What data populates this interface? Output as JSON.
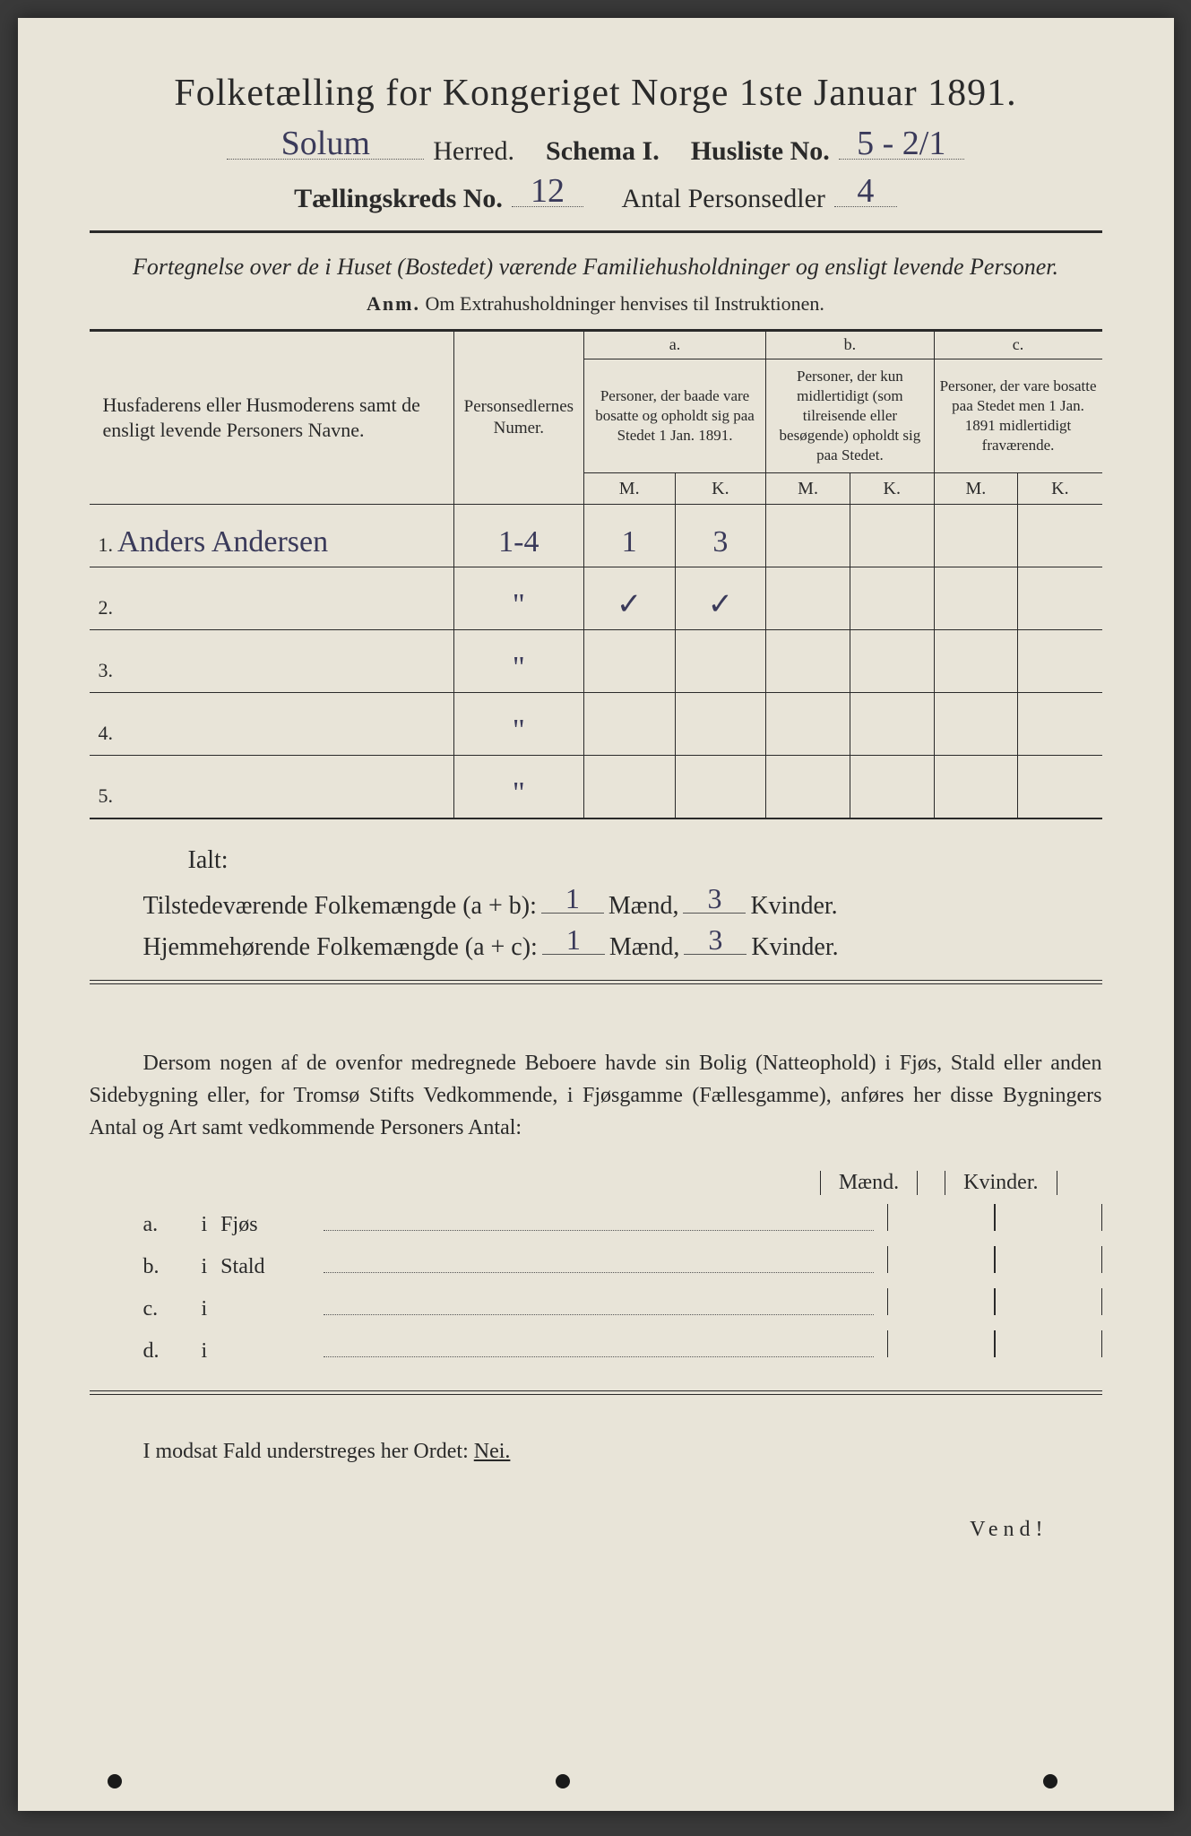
{
  "header": {
    "title": "Folketælling for Kongeriget Norge 1ste Januar 1891.",
    "district_hw": "Solum",
    "herred": "Herred.",
    "schema": "Schema I.",
    "husliste_label": "Husliste No.",
    "husliste_hw": "5 - 2/1",
    "kreds_label": "Tællingskreds No.",
    "kreds_hw": "12",
    "antal_label": "Antal Personsedler",
    "antal_hw": "4"
  },
  "subtitle": "Fortegnelse over de i Huset (Bostedet) værende Familiehusholdninger og ensligt levende Personer.",
  "anm_label": "Anm.",
  "anm_text": "Om Extrahusholdninger henvises til Instruktionen.",
  "table": {
    "col1_header": "Husfaderens eller Husmoderens samt de ensligt levende Personers Navne.",
    "col2_header": "Personsedlernes Numer.",
    "col_a_letter": "a.",
    "col_a_desc": "Personer, der baade vare bosatte og opholdt sig paa Stedet 1 Jan. 1891.",
    "col_b_letter": "b.",
    "col_b_desc": "Personer, der kun midlertidigt (som tilreisende eller besøgende) opholdt sig paa Stedet.",
    "col_c_letter": "c.",
    "col_c_desc": "Personer, der vare bosatte paa Stedet men 1 Jan. 1891 midlertidigt fraværende.",
    "M": "M.",
    "K": "K.",
    "rows": [
      {
        "idx": "1.",
        "name_hw": "Anders Andersen",
        "num_hw": "1-4",
        "aM": "1",
        "aK": "3",
        "bM": "",
        "bK": "",
        "cM": "",
        "cK": ""
      },
      {
        "idx": "2.",
        "name_hw": "",
        "num_hw": "\"",
        "aM": "✓",
        "aK": "✓",
        "bM": "",
        "bK": "",
        "cM": "",
        "cK": ""
      },
      {
        "idx": "3.",
        "name_hw": "",
        "num_hw": "\"",
        "aM": "",
        "aK": "",
        "bM": "",
        "bK": "",
        "cM": "",
        "cK": ""
      },
      {
        "idx": "4.",
        "name_hw": "",
        "num_hw": "\"",
        "aM": "",
        "aK": "",
        "bM": "",
        "bK": "",
        "cM": "",
        "cK": ""
      },
      {
        "idx": "5.",
        "name_hw": "",
        "num_hw": "\"",
        "aM": "",
        "aK": "",
        "bM": "",
        "bK": "",
        "cM": "",
        "cK": ""
      }
    ]
  },
  "ialt": "Ialt:",
  "summary": {
    "row1_label": "Tilstedeværende Folkemængde (a + b):",
    "row2_label": "Hjemmehørende Folkemængde (a + c):",
    "maend": "Mænd,",
    "kvinder": "Kvinder.",
    "r1_m": "1",
    "r1_k": "3",
    "r2_m": "1",
    "r2_k": "3"
  },
  "note": "Dersom nogen af de ovenfor medregnede Beboere havde sin Bolig (Natteophold) i Fjøs, Stald eller anden Sidebygning eller, for Tromsø Stifts Vedkommende, i Fjøsgamme (Fællesgamme), anføres her disse Bygningers Antal og Art samt vedkommende Personers Antal:",
  "buildings": {
    "maend": "Mænd.",
    "kvinder": "Kvinder.",
    "rows": [
      {
        "label": "a.",
        "i": "i",
        "name": "Fjøs"
      },
      {
        "label": "b.",
        "i": "i",
        "name": "Stald"
      },
      {
        "label": "c.",
        "i": "i",
        "name": ""
      },
      {
        "label": "d.",
        "i": "i",
        "name": ""
      }
    ]
  },
  "footer": "I modsat Fald understreges her Ordet:",
  "nei": "Nei.",
  "vendi": "Vend!",
  "colors": {
    "paper": "#e8e4d8",
    "ink": "#2a2a2a",
    "handwriting": "#3a3a5a",
    "background": "#3a3a3a"
  }
}
